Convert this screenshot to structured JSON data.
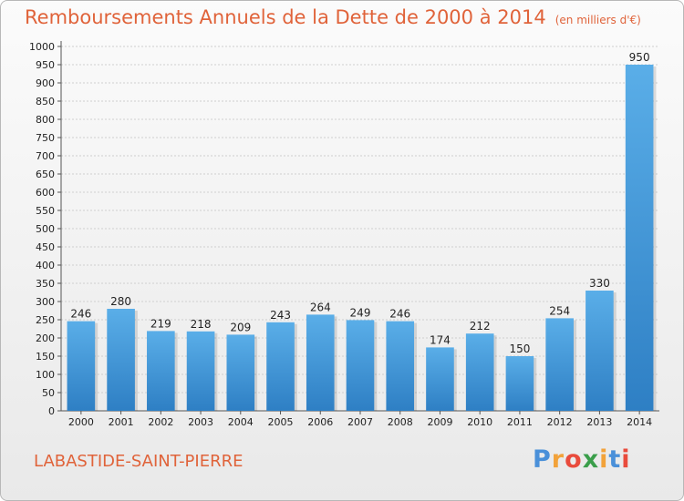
{
  "chart_data": {
    "type": "bar",
    "title": "Remboursements Annuels de la Dette de 2000 à 2014",
    "unit_label": "(en milliers d'€)",
    "categories": [
      "2000",
      "2001",
      "2002",
      "2003",
      "2004",
      "2005",
      "2006",
      "2007",
      "2008",
      "2009",
      "2010",
      "2011",
      "2012",
      "2013",
      "2014"
    ],
    "values": [
      246,
      280,
      219,
      218,
      209,
      243,
      264,
      249,
      246,
      174,
      212,
      150,
      254,
      330,
      950
    ],
    "ylim": [
      0,
      1000
    ],
    "ytick_step": 50,
    "grid": true,
    "bar_color_top": "#5aaee8",
    "bar_color_bottom": "#2e7fc4"
  },
  "footer": {
    "commune": "LABASTIDE-SAINT-PIERRE"
  },
  "logo": {
    "letters": [
      "P",
      "r",
      "o",
      "x",
      "i",
      "t",
      "i"
    ],
    "colors": [
      "#4a90d9",
      "#f2a23a",
      "#e94b3c",
      "#3a9e4a",
      "#f2a23a",
      "#4a90d9",
      "#e94b3c"
    ]
  }
}
